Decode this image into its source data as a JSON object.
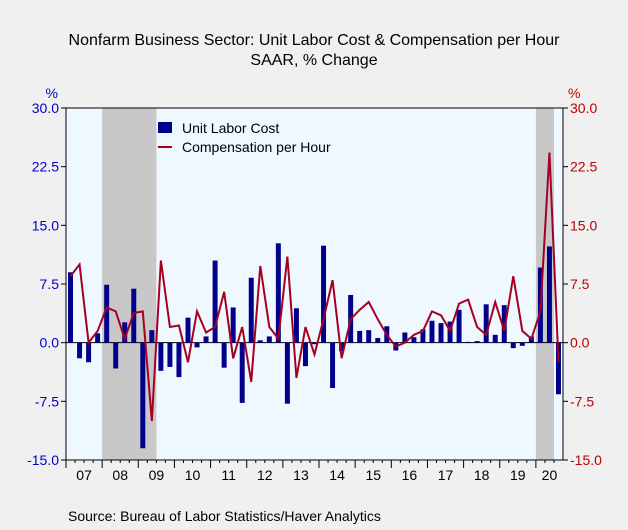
{
  "title": "Nonfarm Business Sector: Unit Labor Cost & Compensation per Hour",
  "subtitle": "SAAR, % Change",
  "source": "Source:  Bureau of Labor Statistics/Haver Analytics",
  "colors": {
    "background": "#f0f0f0",
    "plot_bg": "#f0f8ff",
    "recession": "#c8c8c8",
    "left_axis": "#0000cc",
    "right_axis": "#c00000",
    "bar": "#00008b",
    "line": "#a50021"
  },
  "chart_data": {
    "type": "bar+line",
    "title": "Nonfarm Business Sector: Unit Labor Cost & Compensation per Hour",
    "subtitle": "SAAR, % Change",
    "legend_position": "top-left",
    "left_axis": {
      "unit_label": "%",
      "range": [
        -15,
        30
      ],
      "ticks": [
        "-15.0",
        "-7.5",
        "0.0",
        "7.5",
        "15.0",
        "22.5",
        "30.0"
      ]
    },
    "right_axis": {
      "unit_label": "%",
      "range": [
        -15,
        30
      ],
      "ticks": [
        "-15.0",
        "-7.5",
        "0.0",
        "7.5",
        "15.0",
        "22.5",
        "30.0"
      ]
    },
    "x_labels": [
      "07",
      "08",
      "09",
      "10",
      "11",
      "12",
      "13",
      "14",
      "15",
      "16",
      "17",
      "18",
      "19",
      "20"
    ],
    "quarters_start": "2007Q1",
    "recessions": [
      {
        "start": "2008Q1",
        "end": "2009Q2"
      },
      {
        "start": "2020Q1",
        "end": "2020Q2"
      }
    ],
    "series": [
      {
        "name": "Unit Labor Cost",
        "type": "bar",
        "values": [
          9.0,
          -2.0,
          -2.5,
          1.2,
          7.4,
          -3.3,
          2.6,
          6.9,
          -13.5,
          1.6,
          -3.6,
          -3.1,
          -4.4,
          3.2,
          -0.6,
          0.8,
          10.5,
          -3.2,
          4.5,
          -7.7,
          8.3,
          0.3,
          0.8,
          12.7,
          -7.8,
          4.4,
          -3.0,
          -0.2,
          12.4,
          -5.8,
          -1.1,
          6.1,
          1.5,
          1.6,
          0.6,
          2.1,
          -1.0,
          1.3,
          0.7,
          1.7,
          2.8,
          2.5,
          2.7,
          4.2,
          0.1,
          0.2,
          4.9,
          1.0,
          4.8,
          -0.7,
          -0.4,
          0.8,
          9.6,
          12.3,
          -6.6
        ]
      },
      {
        "name": "Compensation per Hour",
        "type": "line",
        "values": [
          8.5,
          10.0,
          0.0,
          1.5,
          4.5,
          4.0,
          0.5,
          3.8,
          4.0,
          -10.0,
          10.5,
          2.0,
          2.2,
          -2.5,
          4.0,
          1.3,
          2.0,
          6.5,
          -2.0,
          2.0,
          -5.0,
          9.8,
          2.0,
          0.5,
          11.0,
          -4.5,
          2.0,
          -1.5,
          3.0,
          8.0,
          -2.0,
          3.0,
          4.2,
          5.2,
          3.0,
          1.0,
          -0.5,
          0.0,
          1.0,
          1.5,
          4.0,
          3.5,
          1.5,
          5.0,
          5.5,
          2.0,
          1.0,
          5.2,
          1.5,
          8.5,
          1.5,
          0.5,
          4.0,
          24.3,
          -2.5
        ]
      }
    ]
  }
}
